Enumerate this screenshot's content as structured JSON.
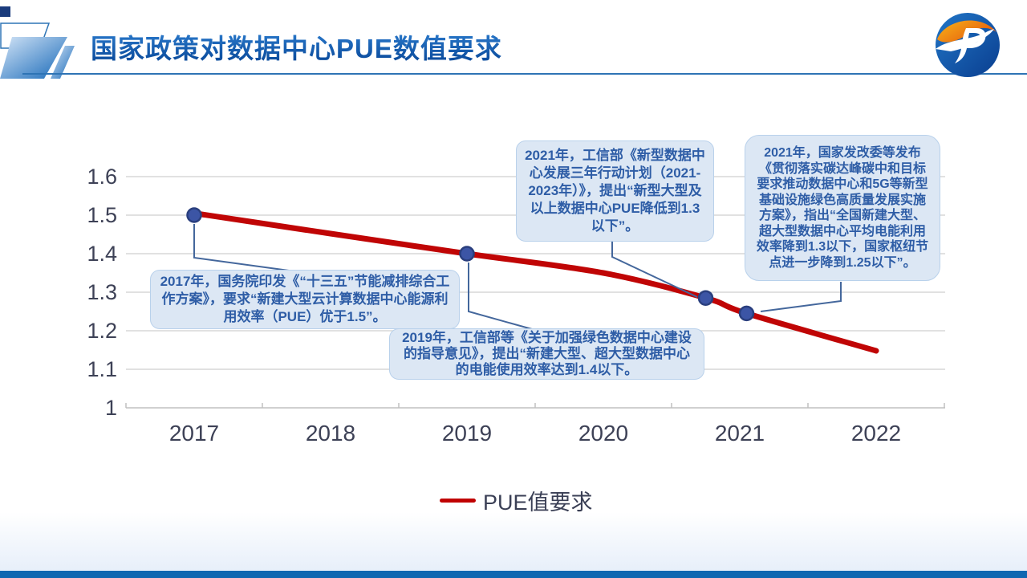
{
  "header": {
    "title": "国家政策对数据中心PUE数值要求",
    "logo_icon": "orange-blue-sphere-jp-logo"
  },
  "chart_data": {
    "type": "line",
    "title": "",
    "xlabel": "",
    "ylabel": "",
    "categories": [
      "2017",
      "2018",
      "2019",
      "2020",
      "2021",
      "2022"
    ],
    "ylim": [
      1,
      1.6
    ],
    "yticks": [
      "1.6",
      "1.5",
      "1.4",
      "1.3",
      "1.2",
      "1.1",
      "1"
    ],
    "grid": true,
    "legend_position": "bottom",
    "series": [
      {
        "name": "PUE值要求",
        "color": "#C00505",
        "curve_points": [
          [
            2017,
            1.505
          ],
          [
            2018,
            1.452
          ],
          [
            2019,
            1.4
          ],
          [
            2020,
            1.35
          ],
          [
            2020.75,
            1.285
          ],
          [
            2021.05,
            1.245
          ],
          [
            2022,
            1.148
          ]
        ],
        "markers": [
          [
            2017,
            1.5
          ],
          [
            2019,
            1.4
          ],
          [
            2020.75,
            1.285
          ],
          [
            2021.05,
            1.245
          ]
        ]
      }
    ],
    "annotations": [
      {
        "anchor_year": 2017,
        "anchor_value": 1.5,
        "text": "2017年，国务院印发《“十三五”节能减排综合工作方案》，要求“新建大型云计算数据中心能源利用效率（PUE）优于1.5”。"
      },
      {
        "anchor_year": 2019,
        "anchor_value": 1.4,
        "text": "2019年，工信部等《关于加强绿色数据中心建设的指导意见》，提出“新建大型、超大型数据中心的电能使用效率达到1.4以下。"
      },
      {
        "anchor_year": 2020.75,
        "anchor_value": 1.285,
        "text": "2021年，工信部《新型数据中心发展三年行动计划（2021-2023年）》，提出“新型大型及以上数据中心PUE降低到1.3以下”。"
      },
      {
        "anchor_year": 2021.05,
        "anchor_value": 1.245,
        "text": "2021年，国家发改委等发布《贯彻落实碳达峰碳中和目标要求推动数据中心和5G等新型基础设施绿色高质量发展实施方案》，指出“全国新建大型、超大型数据中心平均电能利用效率降到1.3以下，国家枢纽节点进一步降到1.25以下”。"
      }
    ]
  },
  "legend": {
    "label": "PUE值要求",
    "color": "#C00000"
  },
  "colors": {
    "title_blue": "#0F5AB0",
    "header_rule": "#2E74B5",
    "line_red": "#C00505",
    "marker_fill": "#3C55A5",
    "marker_stroke": "#2A3F7E",
    "connector": "#44679C",
    "gridline": "#D7D7D7",
    "axis": "#C0C0C0",
    "tick_label": "#3D4156",
    "callout_bg": "#DCE7F4",
    "callout_border": "#B9D1EB",
    "callout_text": "#2E5DA6",
    "footer_bar": "#0F67B1"
  }
}
